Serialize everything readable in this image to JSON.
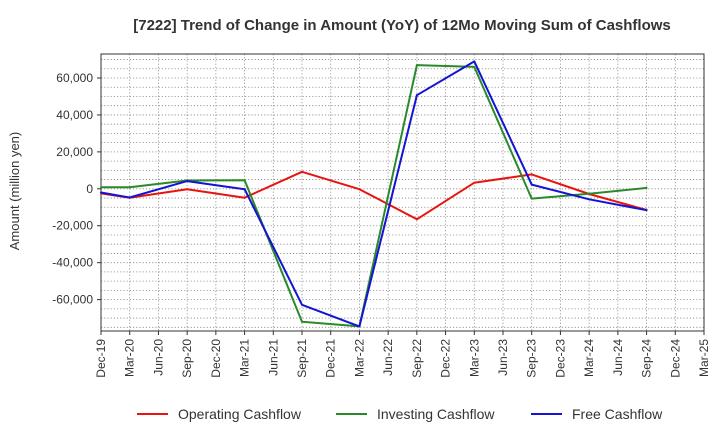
{
  "chart_data": {
    "type": "line",
    "title": "[7222]  Trend of Change in Amount (YoY) of 12Mo Moving Sum of Cashflows",
    "xlabel": "",
    "ylabel": "Amount (million yen)",
    "ylim": [
      -77000,
      73000
    ],
    "yticks": [
      60000,
      40000,
      20000,
      0,
      -20000,
      -40000,
      -60000
    ],
    "ytick_labels": [
      "60,000",
      "40,000",
      "20,000",
      "0",
      "-20,000",
      "-40,000",
      "-60,000"
    ],
    "categories": [
      "Dec-19",
      "Mar-20",
      "Jun-20",
      "Sep-20",
      "Dec-20",
      "Mar-21",
      "Jun-21",
      "Sep-21",
      "Dec-21",
      "Mar-22",
      "Jun-22",
      "Sep-22",
      "Dec-22",
      "Mar-23",
      "Jun-23",
      "Sep-23",
      "Dec-23",
      "Mar-24",
      "Jun-24",
      "Sep-24",
      "Dec-24",
      "Mar-25"
    ],
    "grid": true,
    "legend_position": "bottom",
    "series": [
      {
        "name": "Operating Cashflow",
        "color": "#e8140f",
        "values": [
          -2500,
          -4800,
          null,
          -200,
          null,
          -4800,
          null,
          9200,
          null,
          -200,
          null,
          -16500,
          null,
          3300,
          null,
          7800,
          null,
          -2800,
          null,
          -11500,
          null,
          null
        ]
      },
      {
        "name": "Investing Cashflow",
        "color": "#2a8a2a",
        "values": [
          800,
          800,
          null,
          4500,
          null,
          4600,
          null,
          -72000,
          null,
          -74500,
          null,
          67000,
          null,
          66000,
          null,
          -5300,
          null,
          -2700,
          null,
          500,
          null,
          null
        ]
      },
      {
        "name": "Free Cashflow",
        "color": "#1414d2",
        "values": [
          -2000,
          -4700,
          null,
          4200,
          null,
          -200,
          null,
          -62800,
          null,
          -74500,
          null,
          50700,
          null,
          69000,
          null,
          2300,
          null,
          -5700,
          null,
          -11600,
          null,
          null
        ]
      }
    ]
  }
}
